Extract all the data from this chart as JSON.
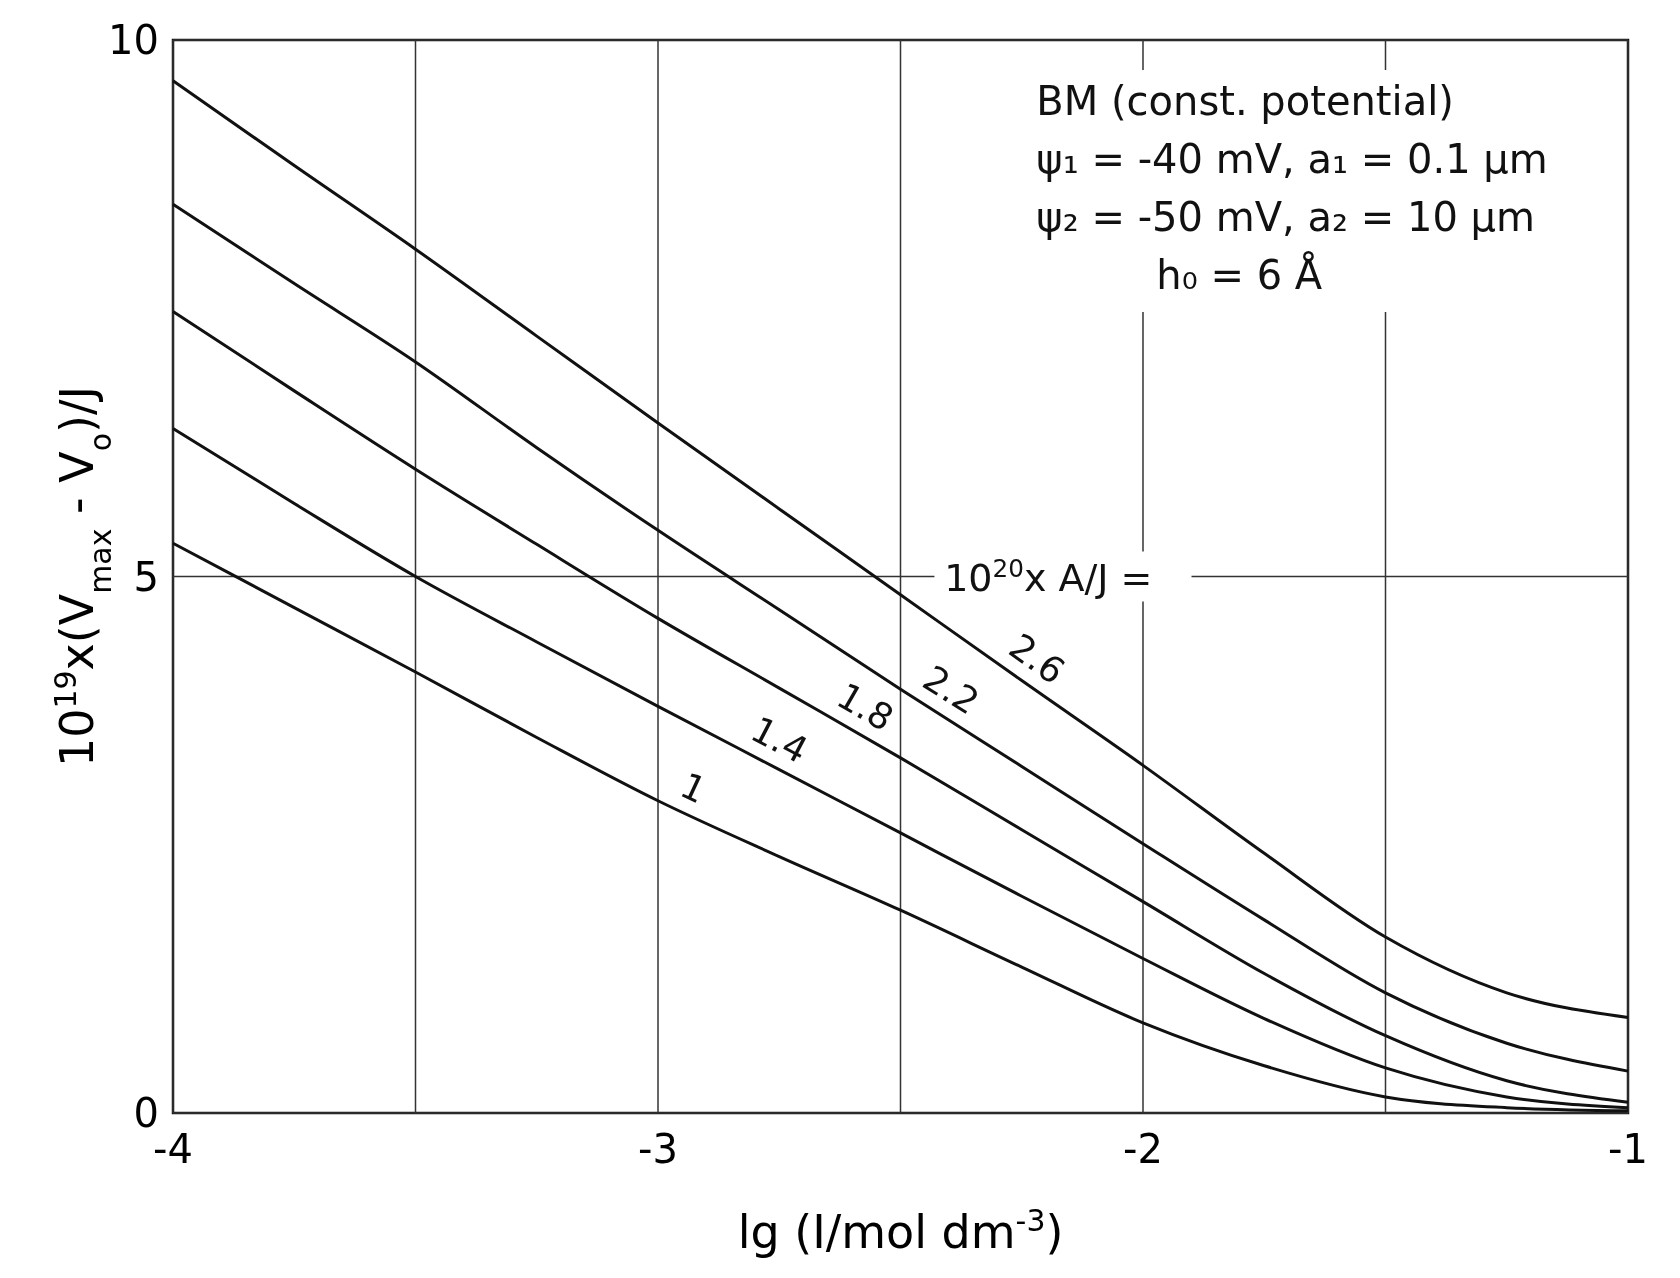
{
  "chart_data": {
    "type": "line",
    "xlabel": "lg (I/mol dm$^{-3}$)",
    "ylabel": "10$^{19}$x(V$_{max}$ - V$_{o}$)/J",
    "legend_title": "10$^{20}$x A/J =",
    "x": [
      -4,
      -3.75,
      -3.5,
      -3.25,
      -3,
      -2.75,
      -2.5,
      -2.25,
      -2,
      -1.75,
      -1.5,
      -1.25,
      -1
    ],
    "series": [
      {
        "name": "1",
        "color": "#111111",
        "values": [
          5.31,
          4.71,
          4.11,
          3.5,
          2.91,
          2.39,
          1.89,
          1.36,
          0.84,
          0.44,
          0.15,
          0.05,
          0.02
        ]
      },
      {
        "name": "1.4",
        "color": "#111111",
        "values": [
          6.38,
          5.68,
          5.0,
          4.39,
          3.79,
          3.2,
          2.61,
          2.02,
          1.44,
          0.88,
          0.42,
          0.15,
          0.05
        ]
      },
      {
        "name": "1.8",
        "color": "#111111",
        "values": [
          7.47,
          6.73,
          6.0,
          5.3,
          4.61,
          3.96,
          3.31,
          2.64,
          1.97,
          1.3,
          0.72,
          0.3,
          0.1
        ]
      },
      {
        "name": "2.2",
        "color": "#111111",
        "values": [
          8.47,
          7.73,
          7.0,
          6.2,
          5.43,
          4.69,
          3.95,
          3.23,
          2.51,
          1.8,
          1.12,
          0.65,
          0.39
        ]
      },
      {
        "name": "2.6",
        "color": "#111111",
        "values": [
          9.62,
          8.83,
          8.05,
          7.24,
          6.43,
          5.63,
          4.83,
          4.03,
          3.24,
          2.42,
          1.64,
          1.12,
          0.89
        ]
      }
    ],
    "xlim": [
      -4,
      -1
    ],
    "ylim": [
      0,
      10
    ],
    "xticks": [
      -4,
      {
        "value": -3.5,
        "label": null
      },
      -3,
      {
        "value": -2.5,
        "label": null
      },
      -2,
      {
        "value": -1.5,
        "label": null
      },
      -1
    ],
    "yticks": [
      0,
      5,
      10
    ],
    "grid": true,
    "marker": "none",
    "line_style": "solid",
    "annotations": [
      "BM (const. potential)",
      "ψ₁ = -40 mV,  a₁ = 0.1 μm",
      "ψ₂ = -50 mV,  a₂ = 10 μm",
      "h₀ = 6 Å"
    ]
  }
}
